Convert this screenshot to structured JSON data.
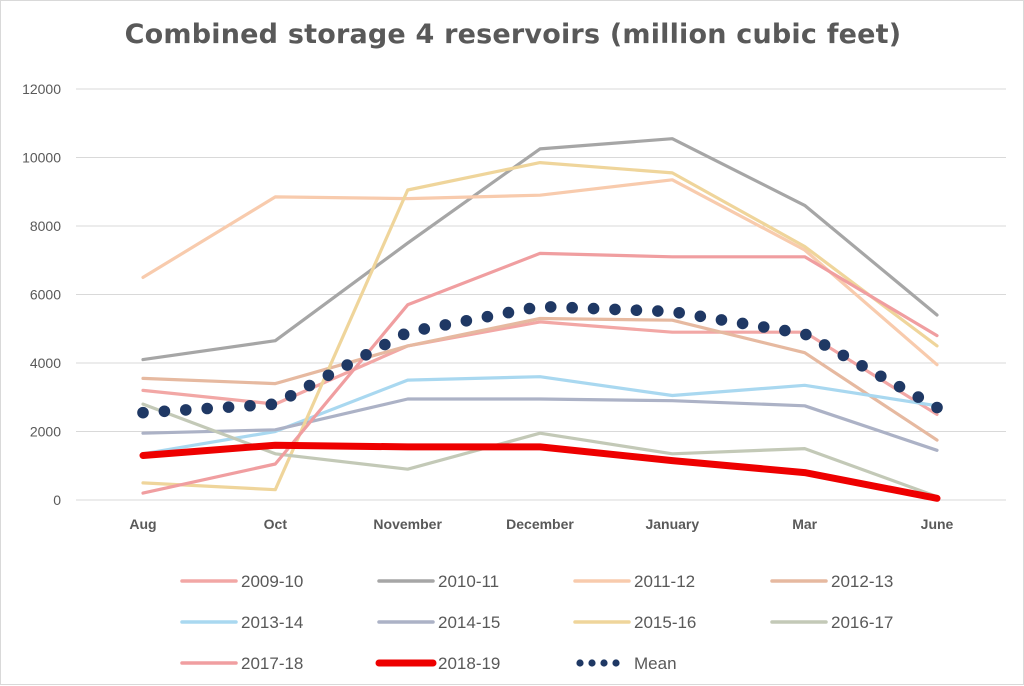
{
  "chart_data": {
    "type": "line",
    "title": "Combined storage 4 reservoirs (million cubic feet)",
    "xlabel": "",
    "ylabel": "",
    "categories": [
      "Aug",
      "Oct",
      "November",
      "December",
      "January",
      "Mar",
      "June"
    ],
    "ylim": [
      0,
      12000
    ],
    "yticks": [
      0,
      2000,
      4000,
      6000,
      8000,
      10000,
      12000
    ],
    "grid": true,
    "legend_position": "bottom",
    "series": [
      {
        "name": "2009-10",
        "color": "#f2a7a5",
        "style": "solid",
        "values": [
          3200,
          2800,
          4500,
          5200,
          4900,
          4900,
          2500
        ]
      },
      {
        "name": "2010-11",
        "color": "#a6a6a6",
        "style": "solid",
        "values": [
          4100,
          4650,
          7500,
          10250,
          10550,
          8600,
          5400
        ]
      },
      {
        "name": "2011-12",
        "color": "#f8cbad",
        "style": "solid",
        "values": [
          6500,
          8850,
          8800,
          8900,
          9350,
          7300,
          3950
        ]
      },
      {
        "name": "2012-13",
        "color": "#e6b9a0",
        "style": "solid",
        "values": [
          3550,
          3400,
          4500,
          5300,
          5250,
          4300,
          1750
        ]
      },
      {
        "name": "2013-14",
        "color": "#a9d8f0",
        "style": "solid",
        "values": [
          1350,
          2000,
          3500,
          3600,
          3050,
          3350,
          2750
        ]
      },
      {
        "name": "2014-15",
        "color": "#acb2c6",
        "style": "solid",
        "values": [
          1950,
          2050,
          2950,
          2950,
          2900,
          2750,
          1450
        ]
      },
      {
        "name": "2015-16",
        "color": "#efd59b",
        "style": "solid",
        "values": [
          500,
          300,
          9050,
          9850,
          9550,
          7400,
          4500
        ]
      },
      {
        "name": "2016-17",
        "color": "#c3c9b7",
        "style": "solid",
        "values": [
          2800,
          1350,
          900,
          1950,
          1350,
          1500,
          100
        ]
      },
      {
        "name": "2017-18",
        "color": "#f09ea0",
        "style": "solid",
        "values": [
          200,
          1050,
          5700,
          7200,
          7100,
          7100,
          4800
        ]
      },
      {
        "name": "2018-19",
        "color": "#ee0000",
        "style": "thick",
        "values": [
          1300,
          1600,
          1550,
          1550,
          1150,
          800,
          50
        ]
      },
      {
        "name": "Mean",
        "color": "#1f3864",
        "style": "dotted",
        "values": [
          2550,
          2800,
          4900,
          5650,
          5500,
          4850,
          2700
        ]
      }
    ]
  }
}
